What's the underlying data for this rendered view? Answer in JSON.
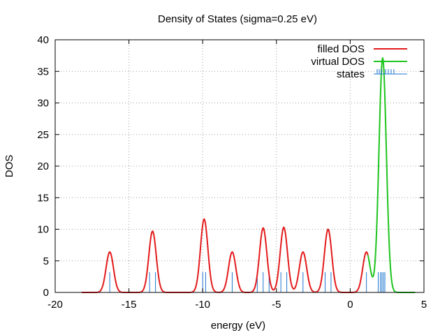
{
  "chart_data": {
    "type": "line",
    "title": "Density of States (sigma=0.25 eV)",
    "xlabel": "energy (eV)",
    "ylabel": "DOS",
    "xlim": [
      -20,
      5
    ],
    "ylim": [
      0,
      40
    ],
    "xticks": [
      -20,
      -15,
      -10,
      -5,
      0,
      5
    ],
    "yticks": [
      0,
      5,
      10,
      15,
      20,
      25,
      30,
      35,
      40
    ],
    "grid": true,
    "legend_position": "top-right",
    "sigma": 0.25,
    "filled_range": [
      -18.2,
      1.2
    ],
    "virtual_range": [
      1.2,
      4.4
    ],
    "series": [
      {
        "name": "filled DOS",
        "color": "#e31a1c",
        "peaks": [
          {
            "center": -16.3,
            "height": 6.4
          },
          {
            "center": -13.4,
            "height": 9.7
          },
          {
            "center": -9.9,
            "height": 11.6
          },
          {
            "center": -8.0,
            "height": 6.4
          },
          {
            "center": -5.9,
            "height": 10.2
          },
          {
            "center": -4.5,
            "height": 10.3
          },
          {
            "center": -3.2,
            "height": 6.4
          },
          {
            "center": -1.5,
            "height": 10.0
          },
          {
            "center": 1.1,
            "height": 6.4
          }
        ]
      },
      {
        "name": "virtual DOS",
        "color": "#1ec41e",
        "peaks": [
          {
            "center": 1.1,
            "height": 6.4
          },
          {
            "center": 2.2,
            "height": 37.1
          }
        ]
      },
      {
        "name": "states",
        "color": "#1f77d0",
        "stick_height": 3.2,
        "energies": [
          -16.3,
          -13.6,
          -13.2,
          -10.0,
          -9.8,
          -8.0,
          -6.3,
          -5.9,
          -5.5,
          -4.7,
          -4.3,
          -3.2,
          -1.7,
          -1.3,
          1.1,
          1.9,
          2.05,
          2.15,
          2.25,
          2.35
        ]
      }
    ]
  }
}
